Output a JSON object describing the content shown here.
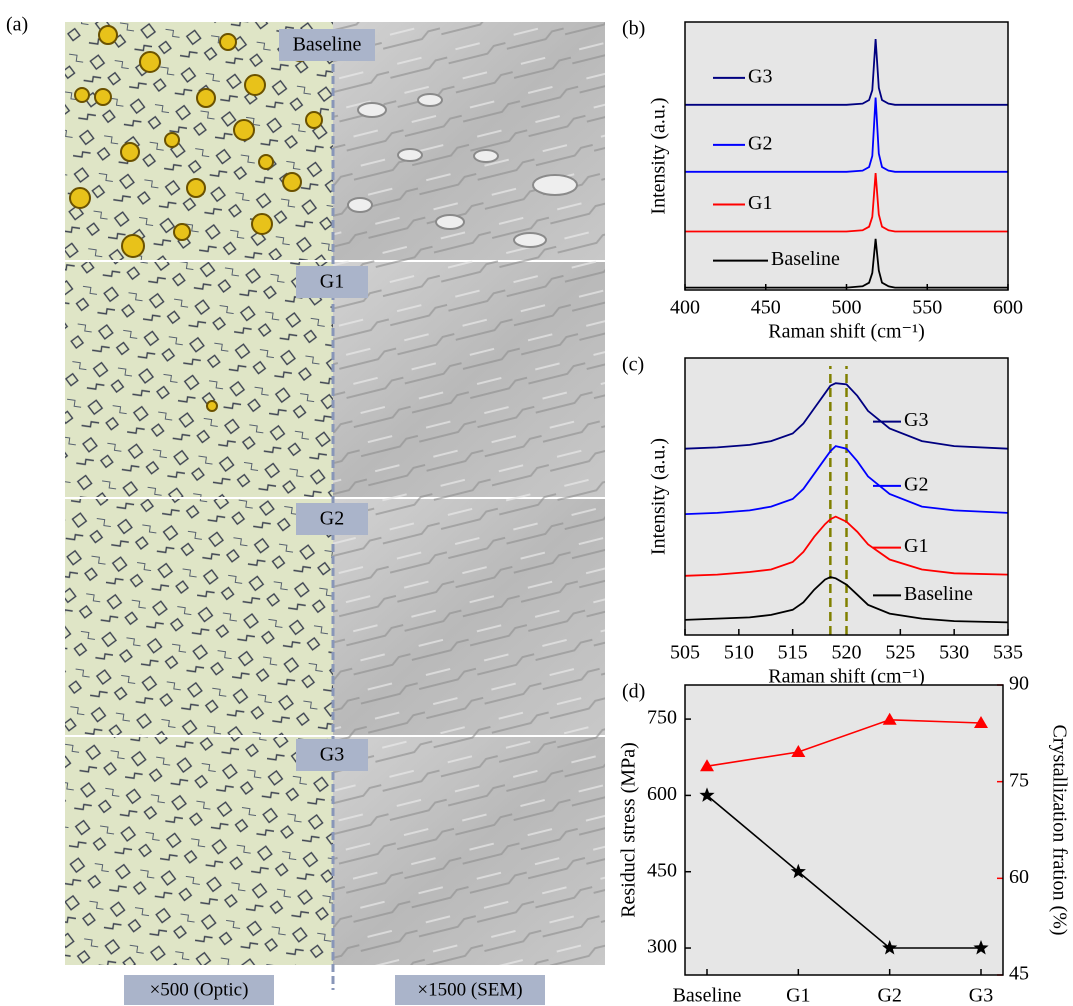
{
  "panel_a": {
    "label": "(a)",
    "rows": [
      "Baseline",
      "G1",
      "G2",
      "G3"
    ],
    "captions": [
      "×500 (Optic)",
      "×1500 (SEM)"
    ]
  },
  "chart_data": [
    {
      "type": "line",
      "panel_label": "(b)",
      "x_label": "Raman shift (cm⁻¹)",
      "y_label": "Intensity (a.u.)",
      "xlim": [
        400,
        600
      ],
      "xticks": [
        400,
        450,
        500,
        550,
        600
      ],
      "ylim": [
        0,
        110
      ],
      "background": "#e6e6e6",
      "legend": "left",
      "x": [
        400,
        450,
        500,
        510,
        514,
        516,
        518,
        520,
        522,
        526,
        530,
        550,
        600
      ],
      "series": [
        {
          "name": "Baseline",
          "color": "#000000",
          "values": [
            1,
            1,
            1,
            1.5,
            3,
            7,
            21,
            8,
            3,
            1.5,
            1,
            1,
            1
          ]
        },
        {
          "name": "G1",
          "color": "#ff0000",
          "values": [
            24,
            24,
            24,
            24.5,
            26,
            30,
            48,
            31,
            26,
            24.5,
            24,
            24,
            24
          ]
        },
        {
          "name": "G2",
          "color": "#0000ff",
          "values": [
            48.5,
            48.5,
            48.5,
            49,
            50.5,
            55,
            79,
            56,
            50.5,
            49,
            48.5,
            48.5,
            48.5
          ]
        },
        {
          "name": "G3",
          "color": "#000080",
          "values": [
            76,
            76,
            76,
            76.5,
            78,
            82,
            103,
            83,
            78,
            76.5,
            76,
            76,
            76
          ]
        }
      ]
    },
    {
      "type": "line",
      "panel_label": "(c)",
      "x_label": "Raman shift (cm⁻¹)",
      "y_label": "Intensity (a.u.)",
      "xlim": [
        505,
        535
      ],
      "xticks": [
        505,
        510,
        515,
        520,
        525,
        530,
        535
      ],
      "ylim": [
        0,
        110
      ],
      "background": "#e6e6e6",
      "legend": "right",
      "vlines": [
        518.5,
        520
      ],
      "vline_color": "#808000",
      "x": [
        505,
        508,
        511,
        513,
        515,
        516,
        517,
        518,
        518.5,
        519,
        520,
        521,
        522,
        524,
        527,
        530,
        535
      ],
      "series": [
        {
          "name": "Baseline",
          "color": "#000000",
          "values": [
            6,
            6.5,
            7,
            8,
            10,
            13,
            18,
            22,
            23,
            22.5,
            20,
            16,
            12,
            8.5,
            6.5,
            5.5,
            5
          ]
        },
        {
          "name": "G1",
          "color": "#ff0000",
          "values": [
            23.5,
            24,
            25,
            26,
            29,
            33,
            39,
            44,
            46,
            47,
            45,
            41,
            36,
            30,
            26,
            24.5,
            24
          ]
        },
        {
          "name": "G2",
          "color": "#0000ff",
          "values": [
            48,
            48.5,
            49.5,
            51,
            54,
            58,
            64,
            70,
            73,
            75,
            74,
            69,
            63,
            56,
            51,
            49.5,
            48.5
          ]
        },
        {
          "name": "G3",
          "color": "#000080",
          "values": [
            74,
            74.5,
            75.5,
            77,
            80,
            84,
            90,
            96,
            99,
            100,
            99.5,
            95,
            89,
            82,
            77,
            75,
            74
          ]
        }
      ]
    },
    {
      "type": "line",
      "panel_label": "(d)",
      "y_label": "Residucl stress (MPa)",
      "y2_label": "Crystallization fration (%)",
      "categories": [
        "Baseline",
        "G1",
        "G2",
        "G3"
      ],
      "ylim": [
        247,
        817
      ],
      "yticks": [
        300,
        450,
        600,
        750
      ],
      "y2lim": [
        45,
        90
      ],
      "y2ticks": [
        45,
        60,
        75,
        90
      ],
      "y2_color": "#ff0000",
      "background": "#e6e6e6",
      "series": [
        {
          "color": "#000000",
          "marker": "star",
          "values": [
            600,
            450,
            300,
            300
          ]
        },
        {
          "color": "#ff0000",
          "marker": "triangle",
          "axis": "y2",
          "values": [
            77.4,
            79.6,
            84.6,
            84.1
          ]
        }
      ]
    }
  ]
}
